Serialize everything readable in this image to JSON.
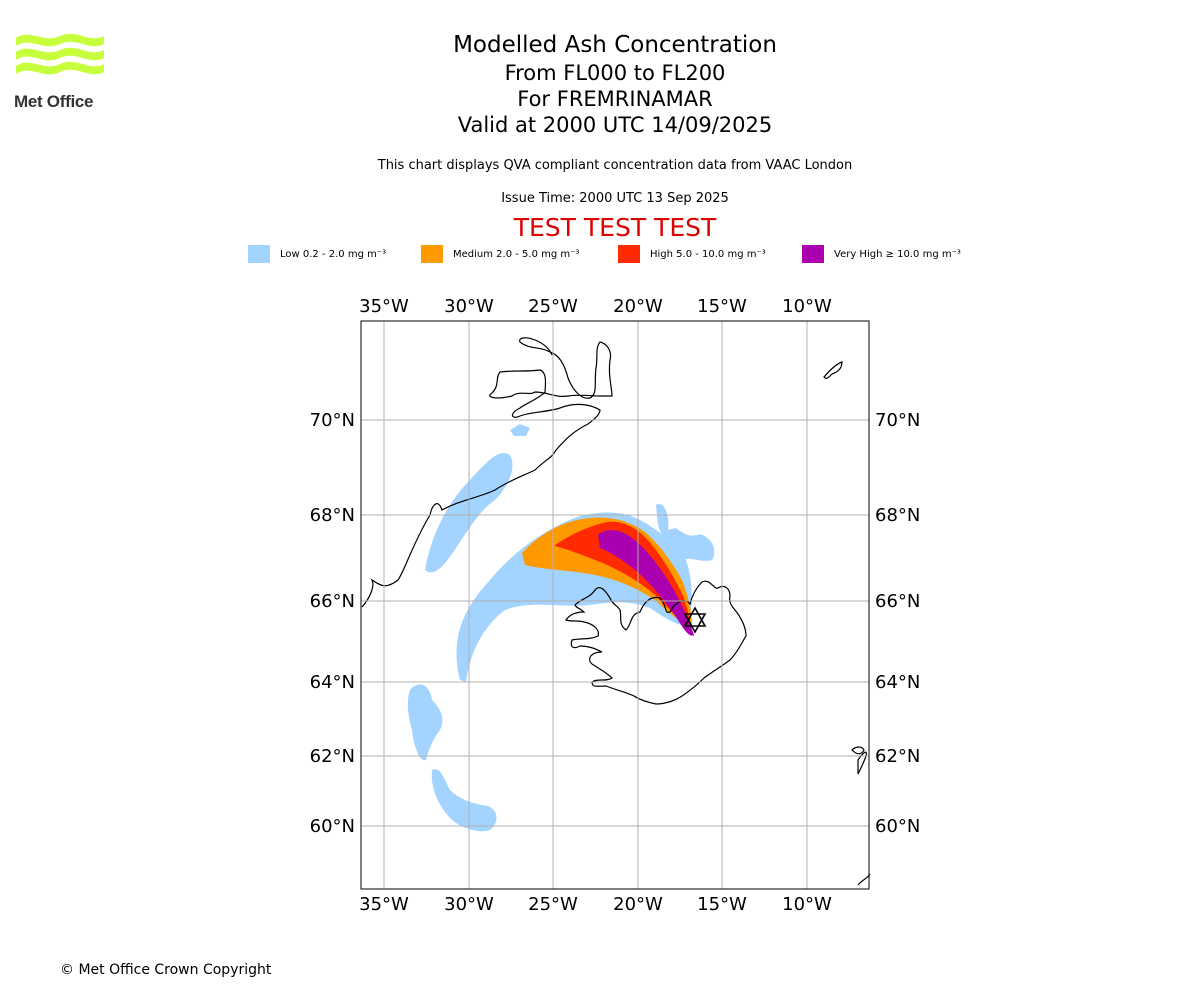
{
  "logo": {
    "text": "Met Office"
  },
  "title": {
    "line1": "Modelled Ash Concentration",
    "line2": "From FL000 to FL200",
    "line3": "For FREMRINAMAR",
    "line4": "Valid at 2000 UTC 14/09/2025"
  },
  "subtitle": "This chart displays QVA compliant concentration data from VAAC London",
  "issue_time": "Issue Time: 2000 UTC 13 Sep 2025",
  "test_banner": "TEST TEST TEST",
  "legend": [
    {
      "label": "Low 0.2 - 2.0 mg m⁻³",
      "color": "#a3d3ff"
    },
    {
      "label": "Medium 2.0 - 5.0 mg m⁻³",
      "color": "#ff9900"
    },
    {
      "label": "High 5.0 - 10.0 mg m⁻³",
      "color": "#ff2a00"
    },
    {
      "label": "Very High ≥ 10.0 mg m⁻³",
      "color": "#aa00b0"
    }
  ],
  "map": {
    "lon_ticks": [
      "35°W",
      "30°W",
      "25°W",
      "20°W",
      "15°W",
      "10°W"
    ],
    "lat_ticks": [
      "70°N",
      "68°N",
      "66°N",
      "64°N",
      "62°N",
      "60°N"
    ],
    "volcano_marker": "triangle-icon"
  },
  "copyright": "© Met Office Crown Copyright"
}
